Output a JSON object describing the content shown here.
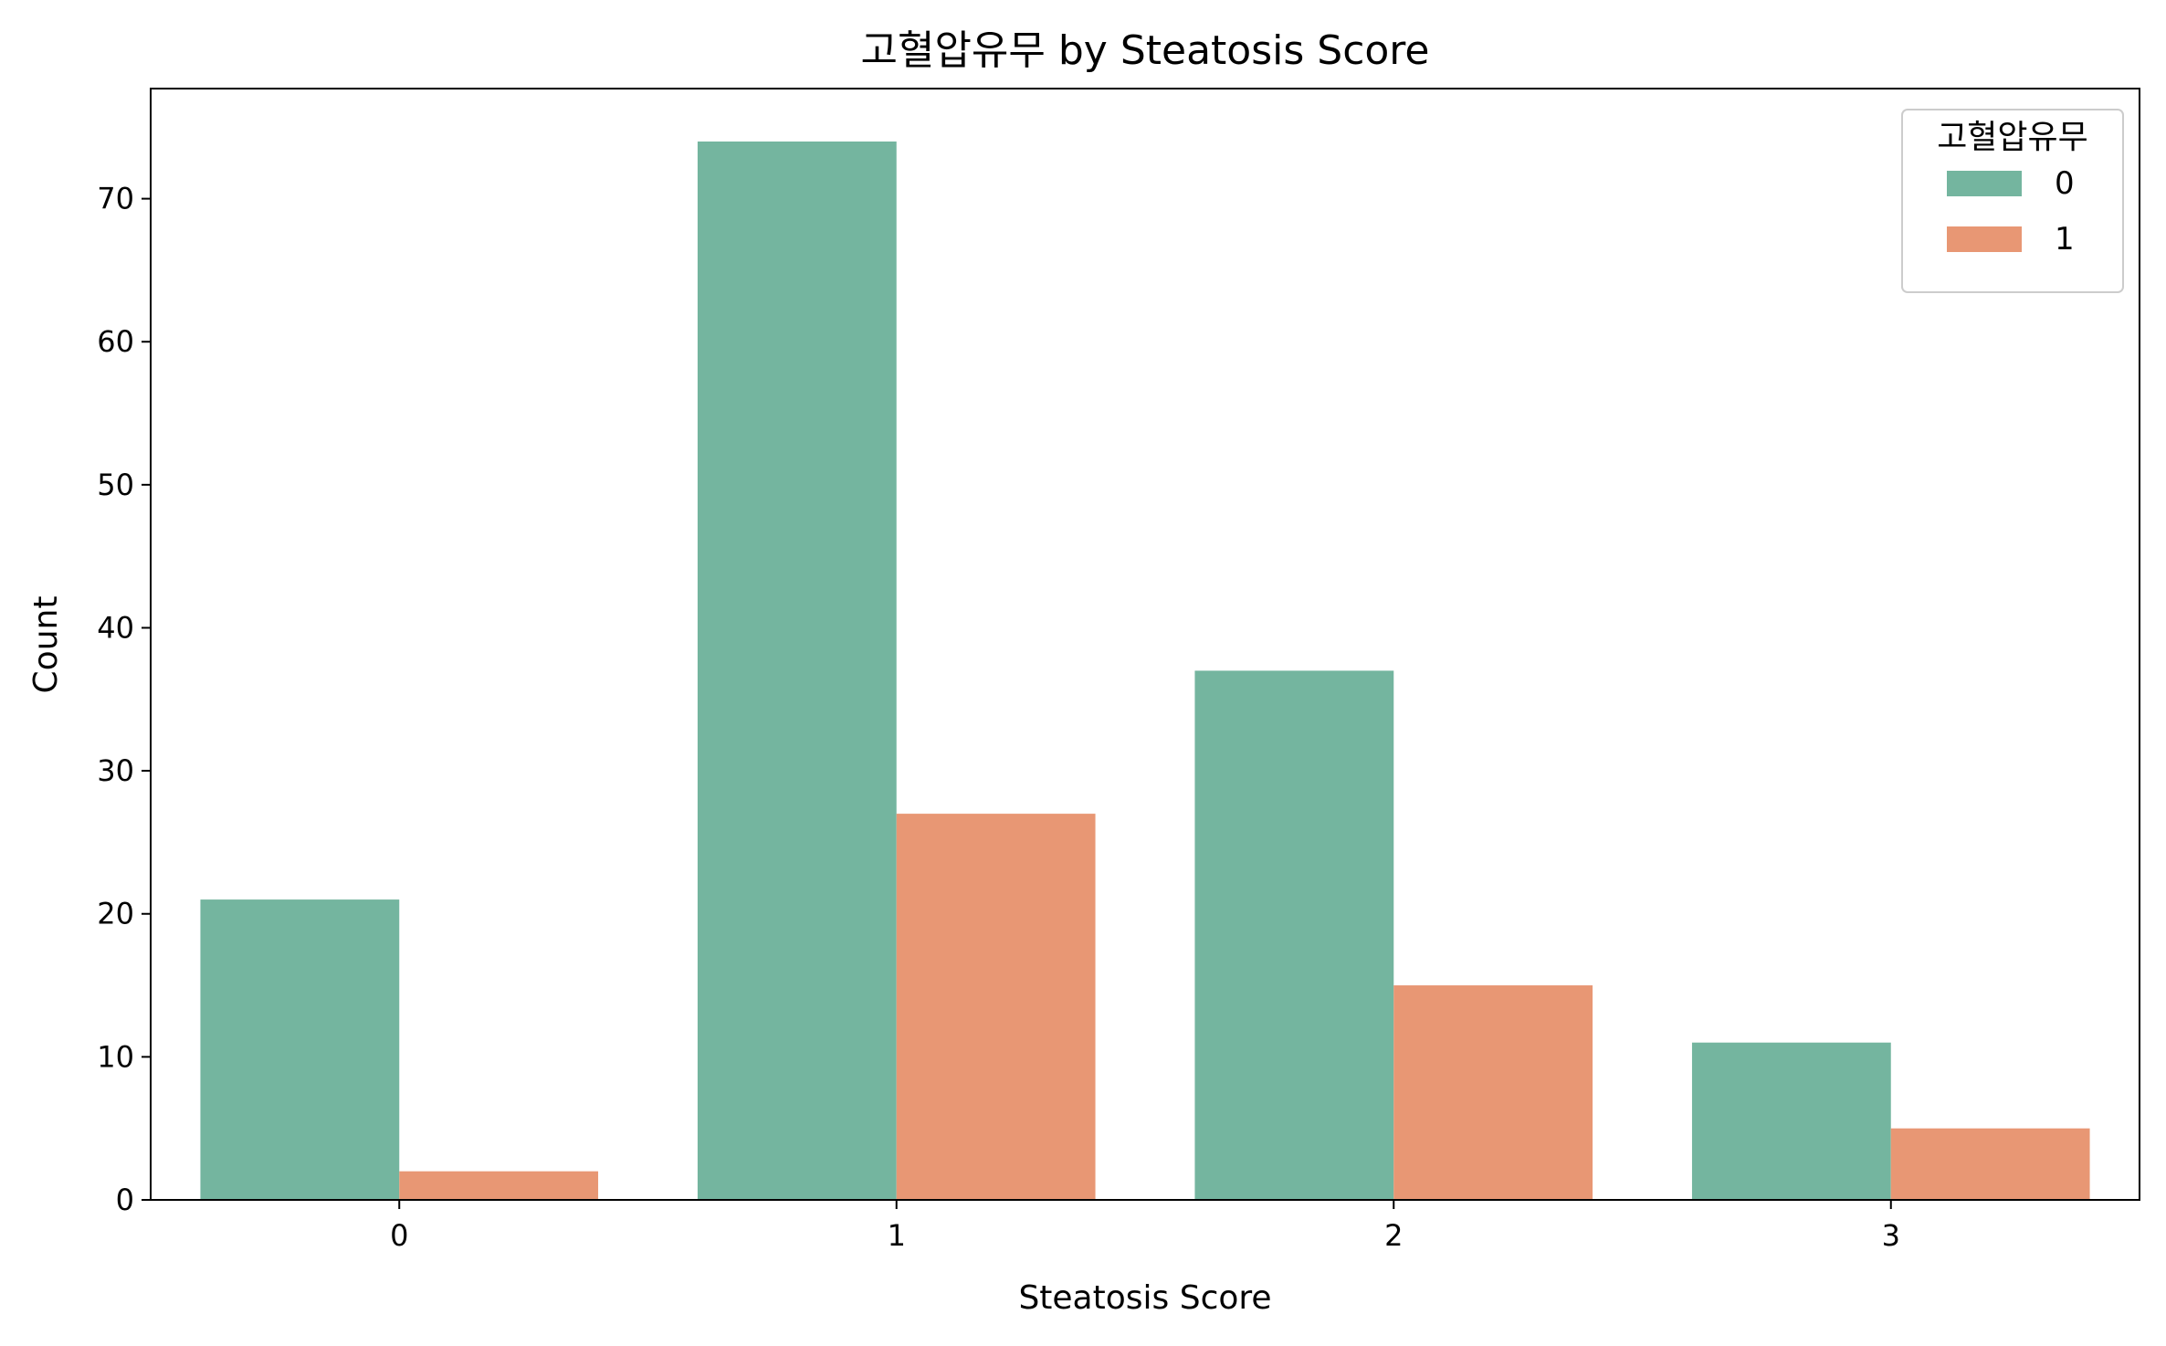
{
  "chart_data": {
    "type": "bar",
    "title": "고혈압유무 by Steatosis Score",
    "xlabel": "Steatosis Score",
    "ylabel": "Count",
    "categories": [
      "0",
      "1",
      "2",
      "3"
    ],
    "series": [
      {
        "name": "0",
        "values": [
          21,
          74,
          37,
          11
        ],
        "color": "#74b59f"
      },
      {
        "name": "1",
        "values": [
          2,
          27,
          15,
          5
        ],
        "color": "#e89774"
      }
    ],
    "ylim": [
      0,
      77.7
    ],
    "yticks": [
      0,
      10,
      20,
      30,
      40,
      50,
      60,
      70
    ],
    "legend": {
      "title": "고혈압유무",
      "position": "top-right"
    },
    "grid": false
  }
}
